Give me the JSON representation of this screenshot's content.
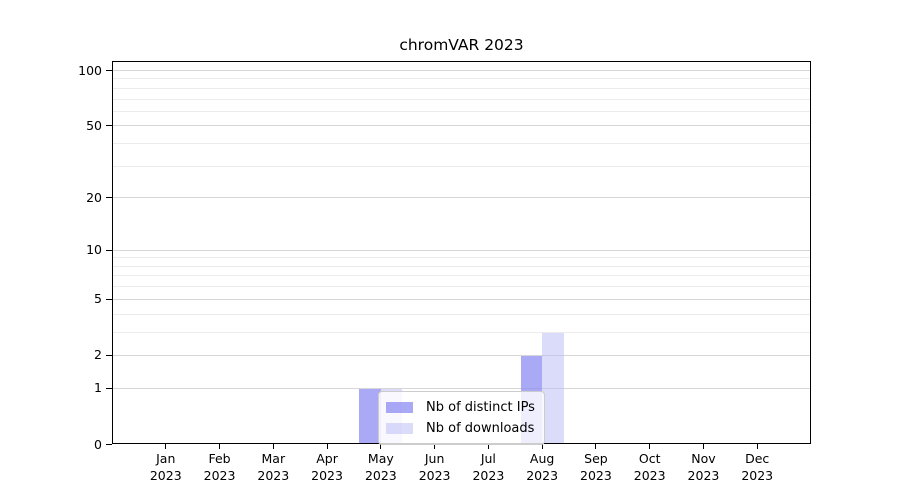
{
  "background": "#ffffff",
  "chart_data": {
    "type": "bar",
    "title": "chromVAR 2023",
    "categories": [
      "Jan",
      "Feb",
      "Mar",
      "Apr",
      "May",
      "Jun",
      "Jul",
      "Aug",
      "Sep",
      "Oct",
      "Nov",
      "Dec"
    ],
    "x_year": "2023",
    "series": [
      {
        "name": "Nb of distinct IPs",
        "color": "rgba(140,140,243,0.75)",
        "color_hex": "#acacf5",
        "values": [
          0,
          0,
          0,
          0,
          1,
          0,
          0,
          2,
          0,
          0,
          0,
          0
        ]
      },
      {
        "name": "Nb of downloads",
        "color": "rgba(190,190,245,0.55)",
        "color_hex": "#dbdbf9",
        "values": [
          0,
          0,
          0,
          0,
          1,
          0,
          0,
          3,
          0,
          0,
          0,
          0
        ]
      }
    ],
    "xlabel": "",
    "ylabel": "",
    "yscale": "log1p",
    "ylim": [
      0,
      112
    ],
    "y_major_ticks": [
      0,
      1,
      2,
      5,
      10,
      20,
      50,
      100
    ],
    "y_minor_gridlines": [
      3,
      4,
      6,
      7,
      8,
      9,
      30,
      40,
      60,
      70,
      80,
      90
    ],
    "grid": "horizontal",
    "legend_position": "lower-center-inside"
  },
  "colors": {
    "axis": "#000000",
    "grid_major": "#d6d6d6",
    "grid_minor": "#ececec",
    "legend_border": "#cccccc",
    "legend_background": "rgba(255,255,255,0.8)",
    "text": "#000000"
  }
}
